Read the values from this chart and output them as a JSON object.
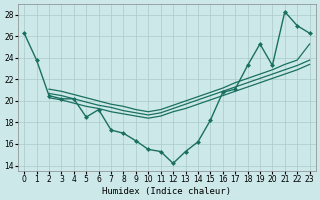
{
  "xlabel": "Humidex (Indice chaleur)",
  "bg_color": "#cce8e8",
  "grid_color": "#aacccc",
  "line_color": "#1a7060",
  "ylim": [
    13.5,
    29.0
  ],
  "xlim": [
    -0.5,
    23.5
  ],
  "yticks": [
    14,
    16,
    18,
    20,
    22,
    24,
    26,
    28
  ],
  "xticks": [
    0,
    1,
    2,
    3,
    4,
    5,
    6,
    7,
    8,
    9,
    10,
    11,
    12,
    13,
    14,
    15,
    16,
    17,
    18,
    19,
    20,
    21,
    22,
    23
  ],
  "jagged_x": [
    0,
    1,
    2,
    3,
    4,
    5,
    6,
    7,
    8,
    9,
    10,
    11,
    12,
    13,
    14,
    15,
    16,
    17,
    18,
    19,
    20,
    21,
    22,
    23
  ],
  "jagged_y": [
    26.3,
    23.8,
    20.5,
    20.2,
    20.2,
    18.5,
    19.2,
    17.3,
    17.0,
    16.3,
    15.5,
    15.3,
    14.2,
    15.3,
    16.2,
    18.2,
    20.8,
    21.1,
    23.3,
    25.3,
    23.3,
    28.3,
    27.0,
    26.3
  ],
  "band_x": [
    2,
    3,
    4,
    5,
    6,
    7,
    8,
    9,
    10,
    11,
    12,
    13,
    14,
    15,
    16,
    17,
    18,
    19,
    20,
    21,
    22,
    23
  ],
  "band1_y": [
    20.3,
    20.1,
    19.8,
    19.5,
    19.3,
    19.0,
    18.8,
    18.6,
    18.4,
    18.6,
    19.0,
    19.3,
    19.7,
    20.1,
    20.5,
    20.9,
    21.3,
    21.7,
    22.1,
    22.5,
    22.9,
    23.4
  ],
  "band2_y": [
    20.7,
    20.5,
    20.2,
    19.9,
    19.6,
    19.4,
    19.1,
    18.9,
    18.7,
    18.9,
    19.3,
    19.7,
    20.1,
    20.5,
    20.9,
    21.3,
    21.7,
    22.1,
    22.5,
    22.9,
    23.3,
    23.8
  ],
  "band3_y": [
    21.1,
    20.9,
    20.6,
    20.3,
    20.0,
    19.7,
    19.5,
    19.2,
    19.0,
    19.2,
    19.6,
    20.0,
    20.4,
    20.8,
    21.2,
    21.7,
    22.1,
    22.5,
    22.9,
    23.4,
    23.8,
    25.3
  ]
}
